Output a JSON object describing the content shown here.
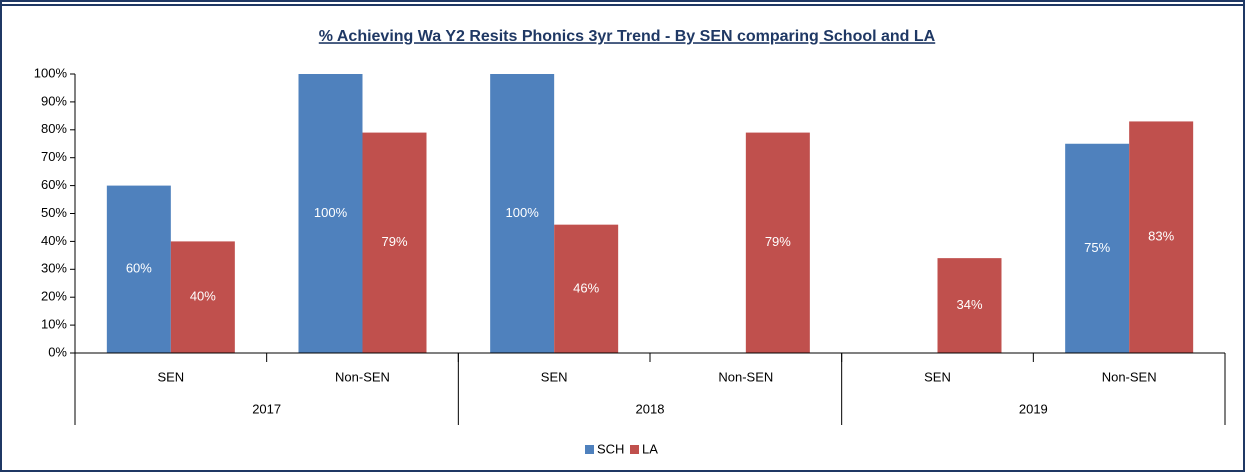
{
  "chart_data": {
    "type": "bar",
    "title": "% Achieving Wa Y2 Resits Phonics 3yr Trend - By SEN comparing School and LA",
    "categories": [
      "SEN",
      "Non-SEN",
      "SEN",
      "Non-SEN",
      "SEN",
      "Non-SEN"
    ],
    "groups": [
      "2017",
      "2018",
      "2019"
    ],
    "series": [
      {
        "name": "SCH",
        "color": "#4f81bd",
        "values": [
          60,
          100,
          100,
          null,
          null,
          75
        ],
        "value_labels": [
          "60%",
          "100%",
          "100%",
          null,
          null,
          "75%"
        ]
      },
      {
        "name": "LA",
        "color": "#c0504d",
        "values": [
          40,
          79,
          46,
          79,
          34,
          83
        ],
        "value_labels": [
          "40%",
          "79%",
          "46%",
          "79%",
          "34%",
          "83%"
        ]
      }
    ],
    "ylim": [
      0,
      100
    ],
    "yticks": [
      {
        "value": 0,
        "label": "0%"
      },
      {
        "value": 10,
        "label": "10%"
      },
      {
        "value": 20,
        "label": "20%"
      },
      {
        "value": 30,
        "label": "30%"
      },
      {
        "value": 40,
        "label": "40%"
      },
      {
        "value": 50,
        "label": "50%"
      },
      {
        "value": 60,
        "label": "60%"
      },
      {
        "value": 70,
        "label": "70%"
      },
      {
        "value": 80,
        "label": "80%"
      },
      {
        "value": 90,
        "label": "90%"
      },
      {
        "value": 100,
        "label": "100%"
      }
    ],
    "legend": "bottom"
  }
}
